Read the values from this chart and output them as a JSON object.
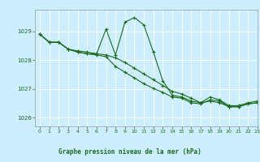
{
  "title": "Graphe pression niveau de la mer (hPa)",
  "background_color": "#cceeff",
  "grid_color": "#ffffff",
  "line_color": "#1a6b1a",
  "marker": "+",
  "xlim": [
    -0.5,
    23
  ],
  "ylim": [
    1025.7,
    1029.75
  ],
  "yticks": [
    1026,
    1027,
    1028,
    1029
  ],
  "xticks": [
    0,
    1,
    2,
    3,
    4,
    5,
    6,
    7,
    8,
    9,
    10,
    11,
    12,
    13,
    14,
    15,
    16,
    17,
    18,
    19,
    20,
    21,
    22,
    23
  ],
  "series1_x": [
    0,
    1,
    2,
    3,
    4,
    5,
    6,
    7,
    8,
    9,
    10,
    11,
    12,
    13,
    14,
    15,
    16,
    17,
    18,
    19,
    20,
    21,
    22,
    23
  ],
  "series1_y": [
    1028.9,
    1028.62,
    1028.62,
    1028.38,
    1028.28,
    1028.22,
    1028.22,
    1029.08,
    1028.18,
    1029.32,
    1029.48,
    1029.22,
    1028.28,
    1027.28,
    1026.78,
    1026.72,
    1026.58,
    1026.52,
    1026.72,
    1026.62,
    1026.42,
    1026.42,
    1026.52,
    1026.58
  ],
  "series2_x": [
    0,
    1,
    2,
    3,
    4,
    5,
    6,
    7,
    8,
    9,
    10,
    11,
    12,
    13,
    14,
    15,
    16,
    17,
    18,
    19,
    20,
    21,
    22,
    23
  ],
  "series2_y": [
    1028.9,
    1028.62,
    1028.62,
    1028.38,
    1028.28,
    1028.22,
    1028.18,
    1028.12,
    1027.78,
    1027.58,
    1027.38,
    1027.18,
    1027.02,
    1026.88,
    1026.72,
    1026.68,
    1026.52,
    1026.48,
    1026.62,
    1026.58,
    1026.38,
    1026.38,
    1026.48,
    1026.52
  ],
  "series3_x": [
    0,
    1,
    2,
    3,
    4,
    5,
    6,
    7,
    8,
    9,
    10,
    11,
    12,
    13,
    14,
    15,
    16,
    17,
    18,
    19,
    20,
    21,
    22,
    23
  ],
  "series3_y": [
    1028.9,
    1028.62,
    1028.62,
    1028.38,
    1028.32,
    1028.28,
    1028.22,
    1028.18,
    1028.08,
    1027.92,
    1027.72,
    1027.52,
    1027.32,
    1027.12,
    1026.92,
    1026.82,
    1026.68,
    1026.52,
    1026.58,
    1026.52,
    1026.38,
    1026.38,
    1026.48,
    1026.52
  ]
}
